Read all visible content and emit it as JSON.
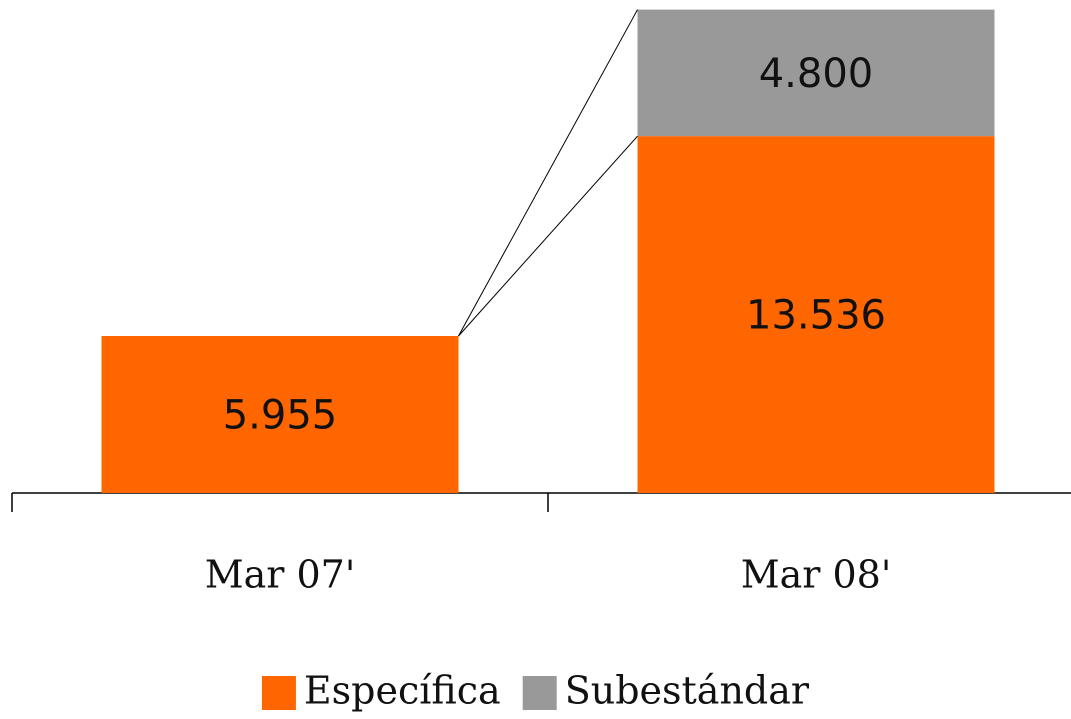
{
  "chart_data": {
    "type": "stacked_bar",
    "categories": [
      "Mar 07'",
      "Mar 08'"
    ],
    "series": [
      {
        "name": "Específica",
        "color": "#ff6600",
        "values": [
          5955,
          13536
        ],
        "value_labels": [
          "5.955",
          "13.536"
        ]
      },
      {
        "name": "Subestándar",
        "color": "#999999",
        "values": [
          null,
          4800
        ],
        "value_labels": [
          null,
          "4.800"
        ]
      }
    ],
    "ylim": [
      0,
      18700
    ],
    "legend": "bottom"
  }
}
